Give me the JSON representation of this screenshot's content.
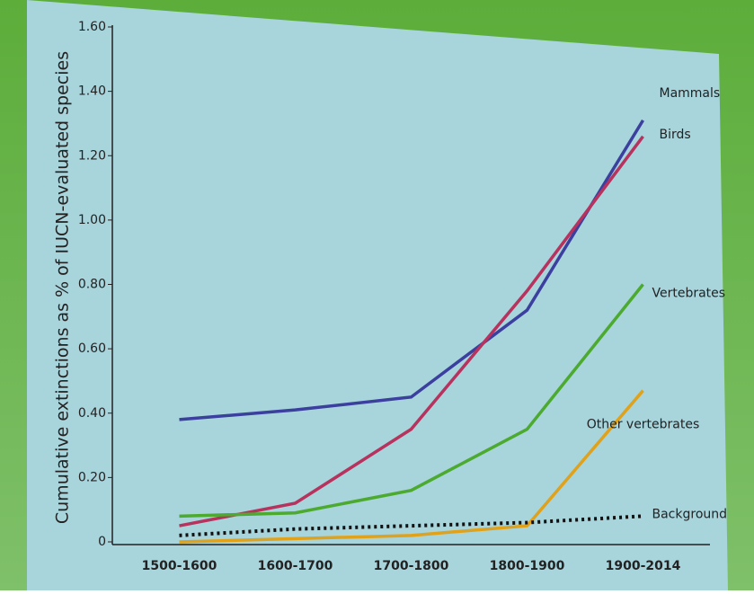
{
  "chart_data": {
    "type": "line",
    "y_label": "Cumulative extinctions as % of IUCN-evaluated species",
    "categories": [
      "1500-1600",
      "1600-1700",
      "1700-1800",
      "1800-1900",
      "1900-2014"
    ],
    "series": [
      {
        "name": "Mammals",
        "color": "#3b3f9e",
        "values": [
          0.38,
          0.41,
          0.45,
          0.72,
          1.31
        ]
      },
      {
        "name": "Birds",
        "color": "#b8325e",
        "values": [
          0.05,
          0.12,
          0.35,
          0.78,
          1.26
        ]
      },
      {
        "name": "Vertebrates",
        "color": "#4caa2e",
        "values": [
          0.08,
          0.09,
          0.16,
          0.35,
          0.8
        ]
      },
      {
        "name": "Other vertebrates",
        "color": "#e0a21a",
        "values": [
          0,
          0.01,
          0.02,
          0.05,
          0.47
        ]
      },
      {
        "name": "Background",
        "color": "#111111",
        "dashed": true,
        "values": [
          0.02,
          0.04,
          0.05,
          0.06,
          0.08
        ]
      }
    ],
    "ylim": [
      0,
      1.6
    ],
    "yticks": [
      0,
      {
        "value": 0.2,
        "label": "0.20"
      },
      {
        "value": 0.4,
        "label": "0.40"
      },
      {
        "value": 0.6,
        "label": "0.60"
      },
      {
        "value": 0.8,
        "label": "0.80"
      },
      {
        "value": 1.0,
        "label": "1.00"
      },
      {
        "value": 1.2,
        "label": "1.20"
      },
      {
        "value": 1.4,
        "label": "1.40"
      },
      {
        "value": 1.6,
        "label": "1.60"
      }
    ],
    "grid": false
  }
}
